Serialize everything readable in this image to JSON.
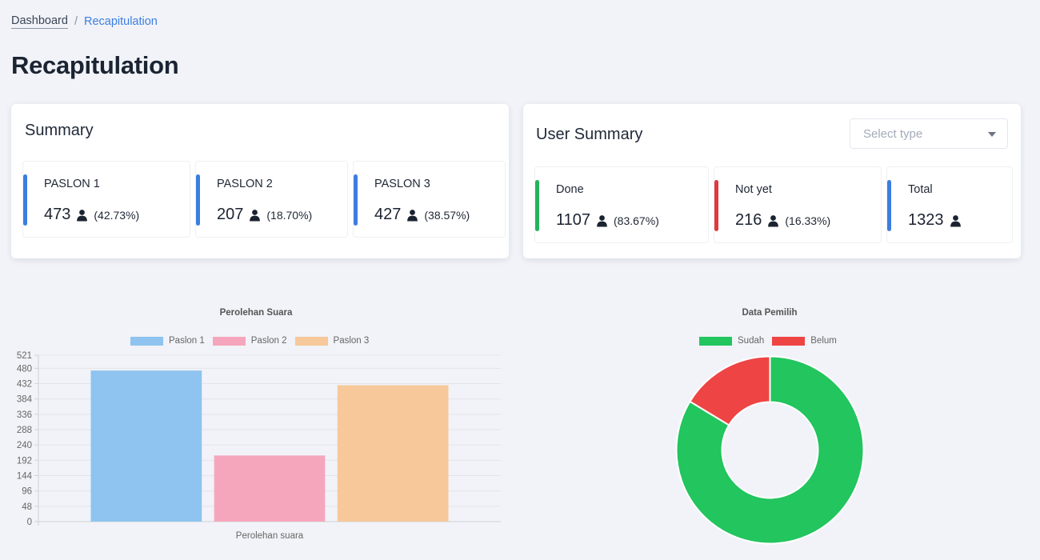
{
  "breadcrumb": {
    "home": "Dashboard",
    "separator": "/",
    "current": "Recapitulation"
  },
  "page": {
    "title": "Recapitulation"
  },
  "summary": {
    "title": "Summary",
    "items": [
      {
        "label": "PASLON 1",
        "value": "473",
        "percent": "(42.73%)",
        "color": "#3b7ee0"
      },
      {
        "label": "PASLON 2",
        "value": "207",
        "percent": "(18.70%)",
        "color": "#3b7ee0"
      },
      {
        "label": "PASLON 3",
        "value": "427",
        "percent": "(38.57%)",
        "color": "#3b7ee0"
      }
    ]
  },
  "user_summary": {
    "title": "User Summary",
    "select": {
      "placeholder": "Select type"
    },
    "items": [
      {
        "label": "Done",
        "value": "1107",
        "percent": "(83.67%)",
        "color": "#22b45c"
      },
      {
        "label": "Not yet",
        "value": "216",
        "percent": "(16.33%)",
        "color": "#e0393e"
      },
      {
        "label": "Total",
        "value": "1323",
        "percent": "",
        "color": "#3b7ee0"
      }
    ]
  },
  "icons": {
    "user": "person-icon",
    "dropdown": "caret-down-icon"
  },
  "chart_data": [
    {
      "type": "bar",
      "title": "Perolehan Suara",
      "categories": [
        "Perolehan suara"
      ],
      "series": [
        {
          "name": "Paslon 1",
          "values": [
            473
          ],
          "color": "#8ec4ef"
        },
        {
          "name": "Paslon 2",
          "values": [
            207
          ],
          "color": "#f6a6bc"
        },
        {
          "name": "Paslon 3",
          "values": [
            427
          ],
          "color": "#f6c89a"
        }
      ],
      "yticks": [
        0,
        48,
        96,
        144,
        192,
        240,
        288,
        336,
        384,
        432,
        480,
        521
      ],
      "ylim": [
        0,
        521
      ],
      "grid": true,
      "legend": "top"
    },
    {
      "type": "pie",
      "title": "Data Pemilih",
      "labels": [
        "Sudah",
        "Belum"
      ],
      "values": [
        1107,
        216
      ],
      "colors": [
        "#22c55e",
        "#ef4444"
      ],
      "legend": "top"
    }
  ]
}
